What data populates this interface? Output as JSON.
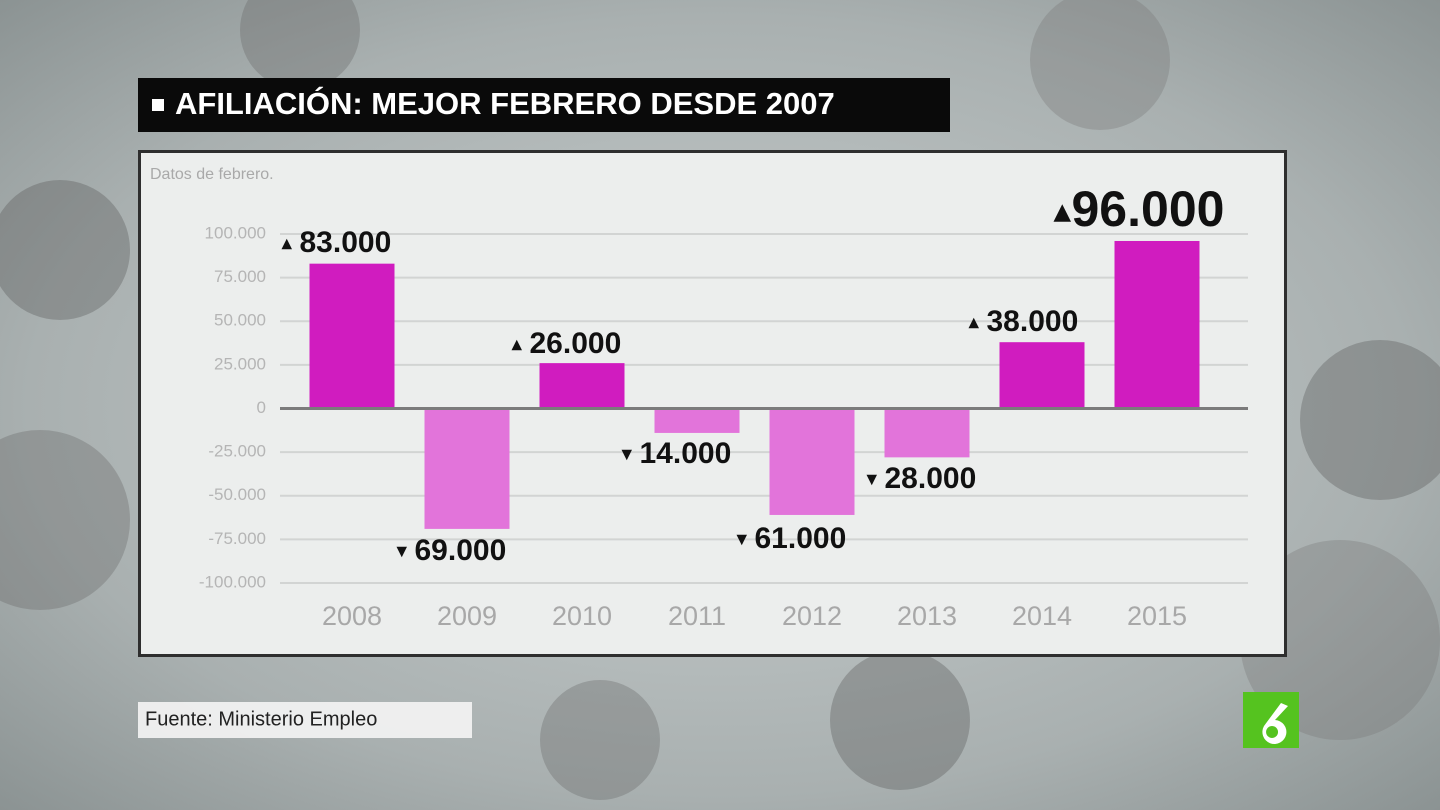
{
  "chart_data": {
    "type": "bar",
    "title": "AFILIACIÓN: MEJOR FEBRERO DESDE 2007",
    "subtitle": "Datos de febrero.",
    "source": "Fuente: Ministerio Empleo",
    "categories": [
      "2008",
      "2009",
      "2010",
      "2011",
      "2012",
      "2013",
      "2014",
      "2015"
    ],
    "values": [
      83000,
      -69000,
      26000,
      -14000,
      -61000,
      -28000,
      38000,
      96000
    ],
    "value_labels": [
      "83.000",
      "69.000",
      "26.000",
      "14.000",
      "61.000",
      "28.000",
      "38.000",
      "96.000"
    ],
    "positive_color": "#d01cbf",
    "negative_color": "#e274da",
    "ylim": [
      -100000,
      100000
    ],
    "yticks": [
      {
        "value": -100000,
        "label": "-100.000"
      },
      {
        "value": -75000,
        "label": "-75.000"
      },
      {
        "value": -50000,
        "label": "-50.000"
      },
      {
        "value": -25000,
        "label": "-25.000"
      },
      0,
      {
        "value": 25000,
        "label": "25.000"
      },
      {
        "value": 50000,
        "label": "50.000"
      },
      {
        "value": 75000,
        "label": "75.000"
      },
      {
        "value": 100000,
        "label": "100.000"
      }
    ],
    "grid": true
  }
}
